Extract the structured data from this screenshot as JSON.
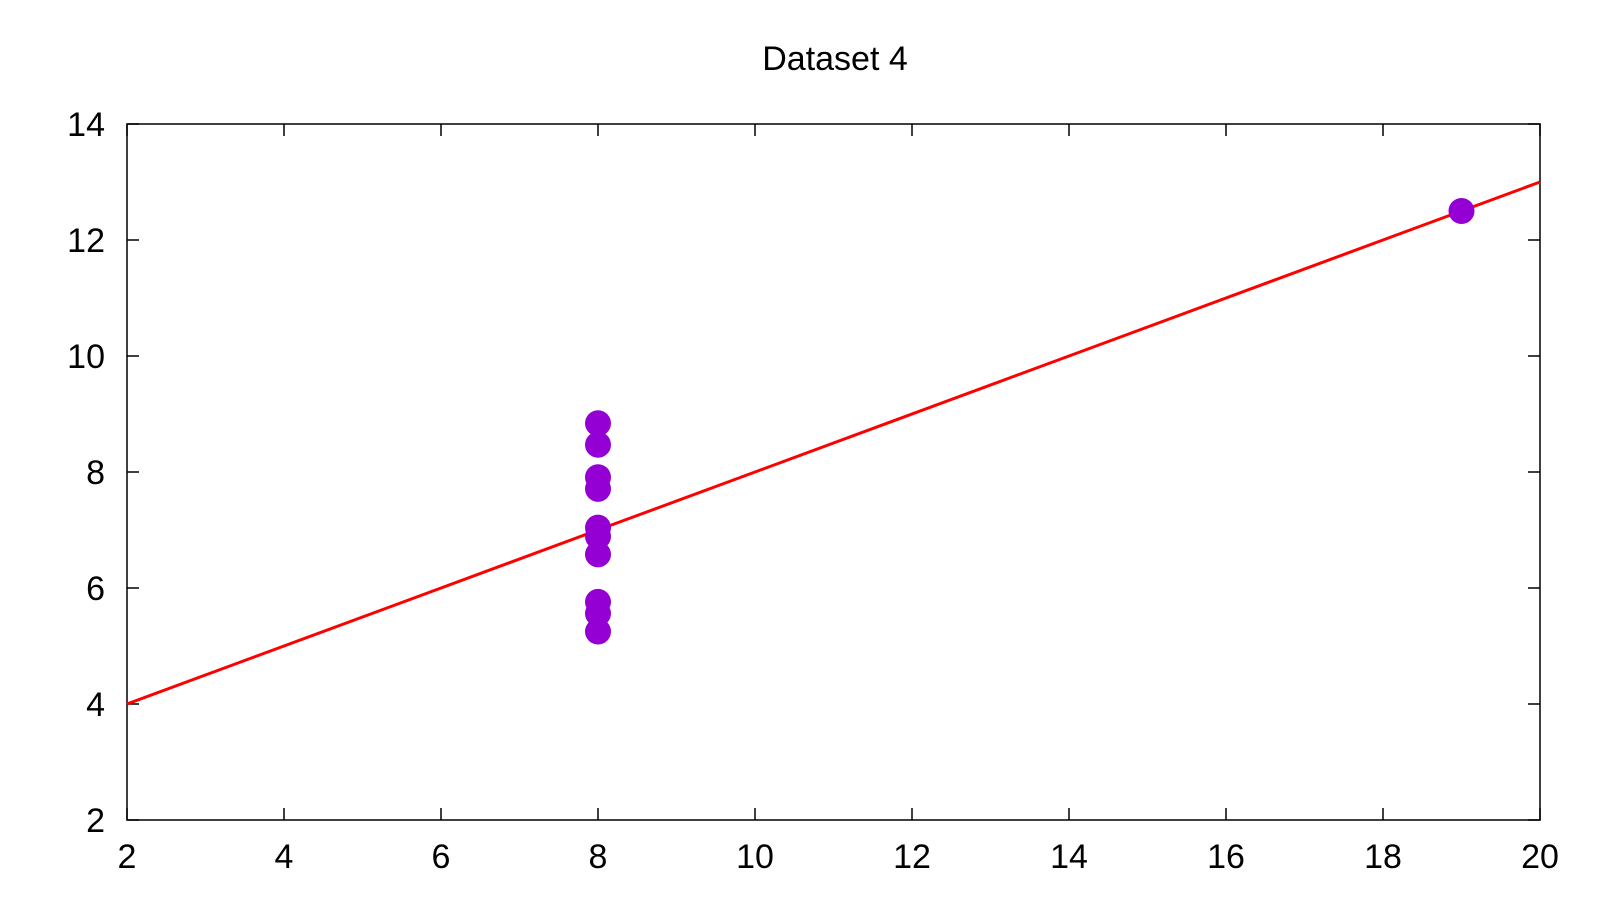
{
  "chart_data": {
    "type": "scatter",
    "title": "Dataset 4",
    "xlabel": "",
    "ylabel": "",
    "xlim": [
      2,
      20
    ],
    "ylim": [
      2,
      14
    ],
    "x_ticks": [
      2,
      4,
      6,
      8,
      10,
      12,
      14,
      16,
      18,
      20
    ],
    "y_ticks": [
      2,
      4,
      6,
      8,
      10,
      12,
      14
    ],
    "grid": false,
    "series": [
      {
        "type": "scatter",
        "color": "#9400d3",
        "points": [
          {
            "x": 8,
            "y": 6.58
          },
          {
            "x": 8,
            "y": 5.76
          },
          {
            "x": 8,
            "y": 7.71
          },
          {
            "x": 8,
            "y": 8.84
          },
          {
            "x": 8,
            "y": 8.47
          },
          {
            "x": 8,
            "y": 7.04
          },
          {
            "x": 8,
            "y": 5.25
          },
          {
            "x": 19,
            "y": 12.5
          },
          {
            "x": 8,
            "y": 5.56
          },
          {
            "x": 8,
            "y": 7.91
          },
          {
            "x": 8,
            "y": 6.89
          }
        ]
      },
      {
        "type": "line",
        "color": "#ff0000",
        "points": [
          {
            "x": 2,
            "y": 4
          },
          {
            "x": 20,
            "y": 13
          }
        ]
      }
    ]
  }
}
